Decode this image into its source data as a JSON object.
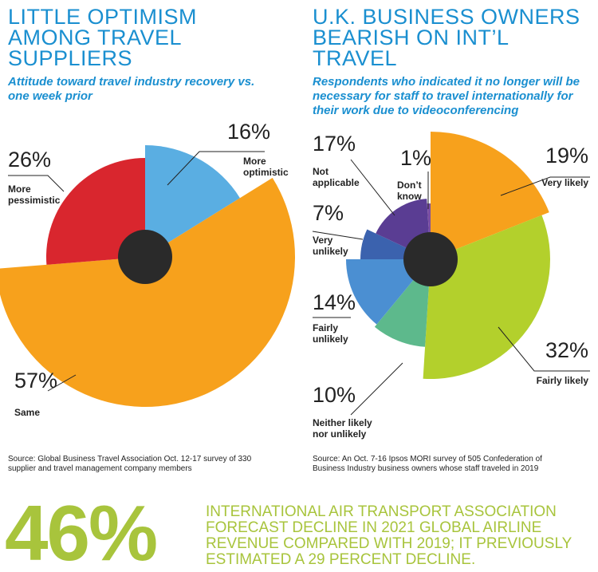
{
  "chart_data": [
    {
      "type": "pie",
      "title": "LITTLE OPTIMISM AMONG TRAVEL SUPPLIERS",
      "subtitle": "Attitude toward travel industry recovery vs. one week prior",
      "categories": [
        "More\noptimistic",
        "Same",
        "More\npessimistic"
      ],
      "values": [
        16,
        57,
        26
      ],
      "value_labels": [
        "16%",
        "57%",
        "26%"
      ],
      "colors": [
        "#5aaee2",
        "#f7a11c",
        "#d9262e"
      ],
      "source": "Source: Global Business Travel Association Oct. 12-17 survey of 330 supplier and travel management company members"
    },
    {
      "type": "pie",
      "title": "U.K. BUSINESS OWNERS BEARISH ON INT’L TRAVEL",
      "subtitle": "Respondents who indicated it no longer will be necessary for staff to travel internationally for their work due to videoconferencing",
      "categories": [
        "Very likely",
        "Fairly likely",
        "Neither likely\nnor unlikely",
        "Fairly\nunlikely",
        "Very\nunlikely",
        "Not\napplicable",
        "Don’t\nknow"
      ],
      "values": [
        19,
        32,
        10,
        14,
        7,
        17,
        1
      ],
      "value_labels": [
        "19%",
        "32%",
        "10%",
        "14%",
        "7%",
        "17%",
        "1%"
      ],
      "colors": [
        "#f7a11c",
        "#b3d02c",
        "#5db98c",
        "#4b8fd2",
        "#3b62ae",
        "#5a3d93",
        "#7c4fa1"
      ],
      "source": "Source: An Oct. 7-16 Ipsos MORI survey of 505 Confederation of Business Industry business owners whose staff traveled in 2019"
    }
  ],
  "callout": {
    "figure": "46%",
    "text": "INTERNATIONAL AIR TRANSPORT ASSOCIATION FORECAST DECLINE IN 2021 GLOBAL AIRLINE REVENUE COMPARED WITH 2019; IT PREVIOUSLY ESTIMATED A 29 PERCENT DECLINE."
  }
}
